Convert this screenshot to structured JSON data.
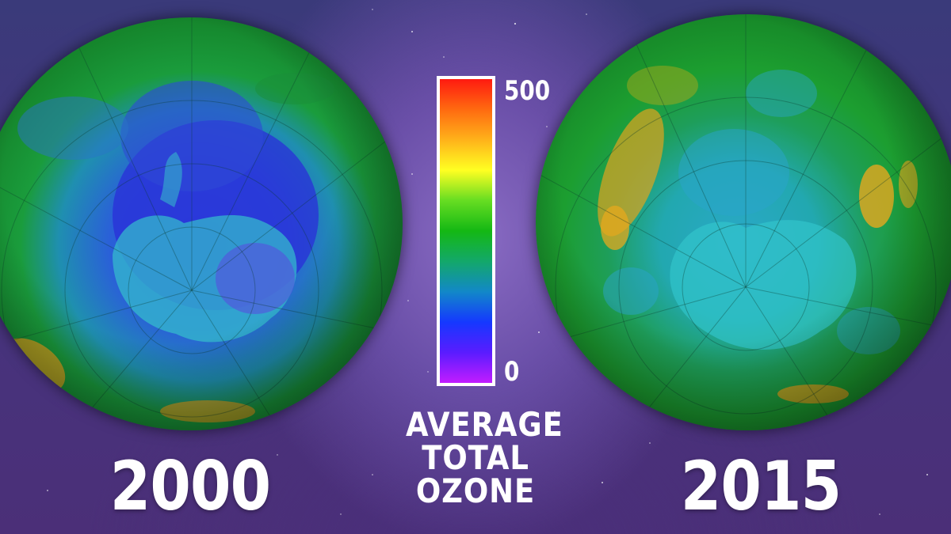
{
  "comparison": {
    "left_year": "2000",
    "right_year": "2015"
  },
  "legend": {
    "title_lines": [
      "AVERAGE",
      "TOTAL",
      "OZONE"
    ],
    "max_label": "500",
    "min_label": "0",
    "colors": [
      "#ff1a10",
      "#ff6a10",
      "#ffb21a",
      "#ffff22",
      "#66dd22",
      "#14b814",
      "#13a86a",
      "#1288c8",
      "#1538ff",
      "#5a1cff",
      "#c21cff"
    ]
  },
  "palette": {
    "background": "#45357e",
    "globe_green": "#1e9a2c",
    "ozone_hole_blue": "#2438d0",
    "land_cyan": "#2ec6c8",
    "hotspot_orange": "#e0a41e"
  }
}
